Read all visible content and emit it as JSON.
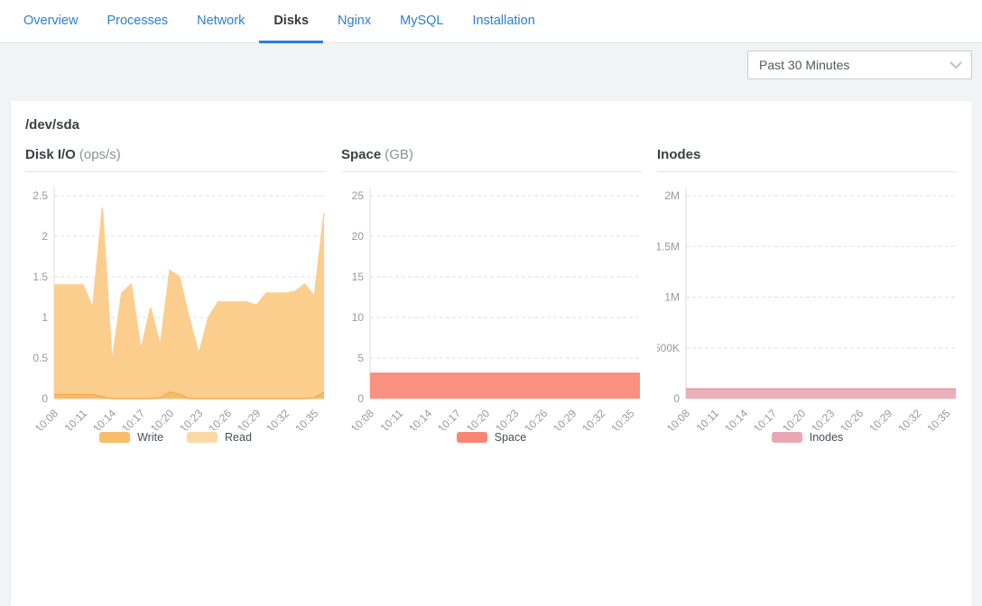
{
  "tabs": [
    {
      "label": "Overview",
      "active": false
    },
    {
      "label": "Processes",
      "active": false
    },
    {
      "label": "Network",
      "active": false
    },
    {
      "label": "Disks",
      "active": true
    },
    {
      "label": "Nginx",
      "active": false
    },
    {
      "label": "MySQL",
      "active": false
    },
    {
      "label": "Installation",
      "active": false
    }
  ],
  "toolbar": {
    "time_range": "Past 30 Minutes",
    "chevron_icon": "chevron-down-icon"
  },
  "card": {
    "title": "/dev/sda"
  },
  "colors": {
    "tab_blue": "#2e7fd1",
    "active_tab_underline": "#2b7be0",
    "write_orange": "#f9bc69",
    "read_orange": "#fbd9a6",
    "space_salmon": "#f98672",
    "inodes_pink": "#e8a7b4"
  },
  "chart_data": [
    {
      "type": "area",
      "title": "Disk I/O",
      "unit": "(ops/s)",
      "x": [
        "10:08",
        "10:09",
        "10:10",
        "10:11",
        "10:12",
        "10:13",
        "10:14",
        "10:15",
        "10:16",
        "10:17",
        "10:18",
        "10:19",
        "10:20",
        "10:21",
        "10:22",
        "10:23",
        "10:24",
        "10:25",
        "10:26",
        "10:27",
        "10:28",
        "10:29",
        "10:30",
        "10:31",
        "10:32",
        "10:33",
        "10:34",
        "10:35",
        "10:36"
      ],
      "x_tick_every": 3,
      "ylim": [
        0,
        2.5
      ],
      "yticks": [
        {
          "v": 0,
          "label": "0"
        },
        {
          "v": 0.5,
          "label": "0.5"
        },
        {
          "v": 1,
          "label": "1"
        },
        {
          "v": 1.5,
          "label": "1.5"
        },
        {
          "v": 2,
          "label": "2"
        },
        {
          "v": 2.5,
          "label": "2.5"
        }
      ],
      "grid": true,
      "legend_position": "bottom",
      "series": [
        {
          "name": "Write",
          "color": "#f9bc69",
          "fill": "#f9bc69",
          "line": "#f5ab4e",
          "values": [
            0.05,
            0.05,
            0.05,
            0.05,
            0.05,
            0.02,
            0,
            0,
            0,
            0,
            0,
            0.01,
            0.08,
            0.05,
            0,
            0,
            0,
            0,
            0,
            0,
            0,
            0,
            0,
            0,
            0,
            0,
            0,
            0.01,
            0.08
          ]
        },
        {
          "name": "Read",
          "color": "#fbd9a6",
          "fill": "#fbce8e",
          "line": "#fbce8e",
          "values": [
            1.4,
            1.4,
            1.4,
            1.4,
            1.12,
            2.35,
            0.45,
            1.3,
            1.41,
            0.6,
            1.12,
            0.65,
            1.58,
            1.5,
            1.0,
            0.55,
            1.0,
            1.19,
            1.19,
            1.19,
            1.19,
            1.15,
            1.3,
            1.3,
            1.3,
            1.32,
            1.41,
            1.26,
            2.28
          ]
        }
      ]
    },
    {
      "type": "area",
      "title": "Space",
      "unit": "(GB)",
      "x": [
        "10:08",
        "10:09",
        "10:10",
        "10:11",
        "10:12",
        "10:13",
        "10:14",
        "10:15",
        "10:16",
        "10:17",
        "10:18",
        "10:19",
        "10:20",
        "10:21",
        "10:22",
        "10:23",
        "10:24",
        "10:25",
        "10:26",
        "10:27",
        "10:28",
        "10:29",
        "10:30",
        "10:31",
        "10:32",
        "10:33",
        "10:34",
        "10:35",
        "10:36"
      ],
      "x_tick_every": 3,
      "ylim": [
        0,
        25
      ],
      "yticks": [
        {
          "v": 0,
          "label": "0"
        },
        {
          "v": 5,
          "label": "5"
        },
        {
          "v": 10,
          "label": "10"
        },
        {
          "v": 15,
          "label": "15"
        },
        {
          "v": 20,
          "label": "20"
        },
        {
          "v": 25,
          "label": "25"
        }
      ],
      "grid": true,
      "legend_position": "bottom",
      "series": [
        {
          "name": "Space",
          "color": "#f98672",
          "fill": "#fa9180",
          "line": "#f87e69",
          "values": [
            3.1,
            3.1,
            3.1,
            3.1,
            3.1,
            3.1,
            3.1,
            3.1,
            3.1,
            3.1,
            3.1,
            3.1,
            3.1,
            3.1,
            3.1,
            3.1,
            3.1,
            3.1,
            3.1,
            3.1,
            3.1,
            3.1,
            3.1,
            3.1,
            3.1,
            3.1,
            3.1,
            3.1,
            3.1
          ]
        }
      ]
    },
    {
      "type": "area",
      "title": "Inodes",
      "unit": "",
      "x": [
        "10:08",
        "10:09",
        "10:10",
        "10:11",
        "10:12",
        "10:13",
        "10:14",
        "10:15",
        "10:16",
        "10:17",
        "10:18",
        "10:19",
        "10:20",
        "10:21",
        "10:22",
        "10:23",
        "10:24",
        "10:25",
        "10:26",
        "10:27",
        "10:28",
        "10:29",
        "10:30",
        "10:31",
        "10:32",
        "10:33",
        "10:34",
        "10:35",
        "10:36"
      ],
      "x_tick_every": 3,
      "ylim": [
        0,
        2000000
      ],
      "yticks": [
        {
          "v": 0,
          "label": "0"
        },
        {
          "v": 500000,
          "label": "500K"
        },
        {
          "v": 1000000,
          "label": "1M"
        },
        {
          "v": 1500000,
          "label": "1.5M"
        },
        {
          "v": 2000000,
          "label": "2M"
        }
      ],
      "grid": true,
      "legend_position": "bottom",
      "series": [
        {
          "name": "Inodes",
          "color": "#e8a7b4",
          "fill": "#eaafbb",
          "line": "#e298a7",
          "values": [
            95000,
            95000,
            95000,
            95000,
            95000,
            95000,
            95000,
            95000,
            95000,
            95000,
            95000,
            95000,
            95000,
            95000,
            95000,
            95000,
            95000,
            95000,
            95000,
            95000,
            95000,
            95000,
            95000,
            95000,
            95000,
            95000,
            95000,
            95000,
            95000
          ]
        }
      ]
    }
  ]
}
